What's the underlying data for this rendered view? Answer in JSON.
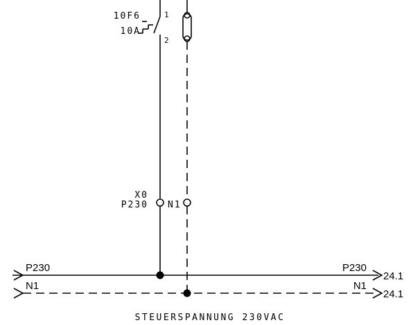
{
  "breaker": {
    "tag": "10F6",
    "rating": "10A",
    "pin_top": "1",
    "pin_bottom": "2"
  },
  "terminal": {
    "strip": "X0",
    "phase_label": "P230",
    "neutral_label": "N1"
  },
  "bus": {
    "phase": {
      "left_label": "P230",
      "right_label": "P230",
      "ref": "24.1"
    },
    "neutral": {
      "left_label": "N1",
      "right_label": "N1",
      "ref": "24.1"
    }
  },
  "caption": "STEUERSPANNUNG 230VAC"
}
